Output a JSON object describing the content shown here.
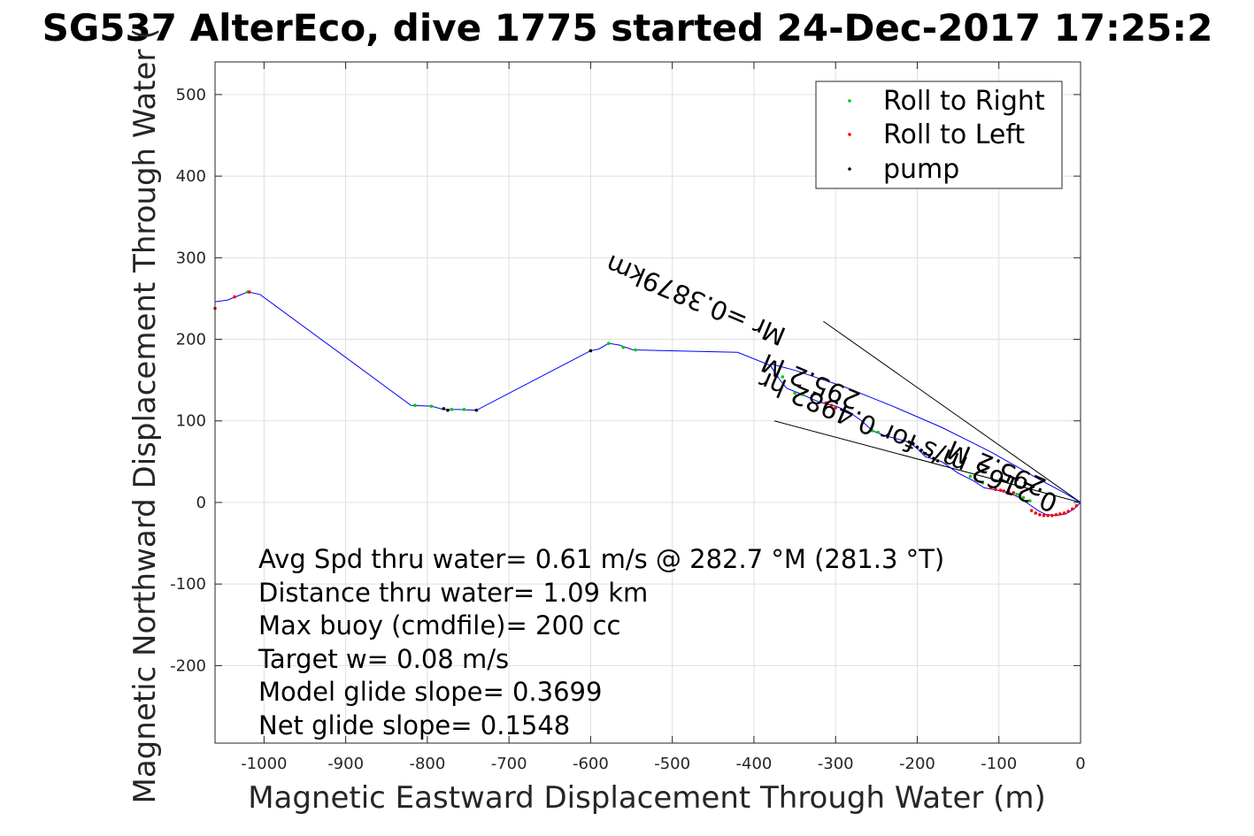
{
  "chart_data": {
    "type": "line",
    "title": "SG537 AlterEco, dive 1775 started 24-Dec-2017 17:25:2",
    "xlabel": "Magnetic Eastward Displacement Through Water (m)",
    "ylabel": "Magnetic Northward Displacement Through Water (",
    "xlim": [
      -1060,
      0
    ],
    "ylim": [
      -295,
      540
    ],
    "xticks": [
      -1000,
      -900,
      -800,
      -700,
      -600,
      -500,
      -400,
      -300,
      -200,
      -100,
      0
    ],
    "yticks": [
      -200,
      -100,
      0,
      100,
      200,
      300,
      400,
      500
    ],
    "grid": true,
    "legend_position": "top-right",
    "legend": [
      {
        "label": "Roll to Right",
        "color": "#00cc00"
      },
      {
        "label": "Roll to Left",
        "color": "#ff0000"
      },
      {
        "label": "pump",
        "color": "#000000"
      }
    ],
    "track": {
      "color": "#0000ff",
      "x": [
        -1060,
        -1045,
        -1030,
        -1020,
        -1005,
        -820,
        -795,
        -780,
        -760,
        -740,
        -600,
        -590,
        -578,
        -565,
        -548,
        -420,
        -380,
        -368,
        -360,
        -345,
        -320,
        -300,
        -285,
        -268,
        -255,
        -240,
        -210,
        -200,
        -190,
        -170,
        -150,
        -132,
        -118,
        -102,
        -88,
        -75,
        -62,
        -52,
        -42,
        -30,
        -18,
        -8,
        0
      ],
      "y": [
        246,
        248,
        254,
        258,
        255,
        119,
        118,
        114,
        114,
        113,
        186,
        188,
        195,
        193,
        187,
        184,
        168,
        150,
        140,
        134,
        123,
        118,
        112,
        100,
        88,
        82,
        74,
        66,
        56,
        50,
        36,
        27,
        18,
        15,
        12,
        6,
        -3,
        -10,
        -15,
        -16,
        -14,
        -8,
        0
      ]
    },
    "track2": {
      "color": "#0000ff",
      "x": [
        -380,
        -350,
        -320,
        -290,
        -260,
        -230,
        -200,
        -170,
        -140,
        -110,
        -80,
        -50,
        -20,
        0
      ],
      "y": [
        170,
        162,
        152,
        142,
        130,
        118,
        105,
        92,
        77,
        62,
        45,
        28,
        12,
        0
      ]
    },
    "roll_right": {
      "x": [
        -1020,
        -815,
        -795,
        -770,
        -755,
        -578,
        -560,
        -545,
        -365,
        -350,
        -340,
        -255,
        -248,
        -135,
        -128,
        -120,
        -78,
        -70,
        -62
      ],
      "y": [
        258,
        119,
        118,
        114,
        114,
        195,
        190,
        187,
        154,
        134,
        132,
        88,
        86,
        32,
        28,
        24,
        10,
        6,
        2
      ]
    },
    "roll_left": {
      "x": [
        -1060,
        -1036,
        -1018,
        -312,
        -305,
        -300,
        -110,
        -104,
        -98,
        -94,
        -88,
        -82,
        -60,
        -55,
        -50,
        -45,
        -40,
        -35,
        -30,
        -25,
        -20,
        -15,
        -10,
        -5
      ],
      "y": [
        238,
        252,
        258,
        122,
        119,
        116,
        18,
        16,
        15,
        14,
        13,
        12,
        -10,
        -13,
        -15,
        -16,
        -16,
        -16,
        -15,
        -14,
        -13,
        -11,
        -8,
        -4
      ]
    },
    "pump": {
      "x": [
        -600,
        -780,
        -775,
        -740,
        -210,
        -205,
        -200,
        -195,
        -190,
        -185,
        -180,
        -175
      ],
      "y": [
        186,
        115,
        113,
        113,
        74,
        72,
        68,
        64,
        60,
        57,
        54,
        51
      ]
    },
    "heading_lines": [
      {
        "x": [
          -315,
          0
        ],
        "y": [
          222,
          0
        ]
      },
      {
        "x": [
          -375,
          0
        ],
        "y": [
          100,
          0
        ]
      }
    ],
    "rotated_annotations": [
      {
        "text": "0.3879km",
        "angle": 23
      },
      {
        "text": "Mr =0.3879km",
        "angle": 23
      },
      {
        "text": "295.2 M",
        "angle": 23
      },
      {
        "text": "0.2162 m/s for 0.4982 hr",
        "angle": 23
      },
      {
        "text": "295.2 M",
        "angle": 23
      }
    ],
    "annotations": [
      "Avg Spd thru water=  0.61 m/s @ 282.7 °M (281.3 °T)",
      "Distance thru water=  1.09 km",
      "Max buoy (cmdfile)= 200 cc",
      "Target w= 0.08 m/s",
      "Model glide slope= 0.3699",
      "Net glide slope= 0.1548"
    ]
  }
}
